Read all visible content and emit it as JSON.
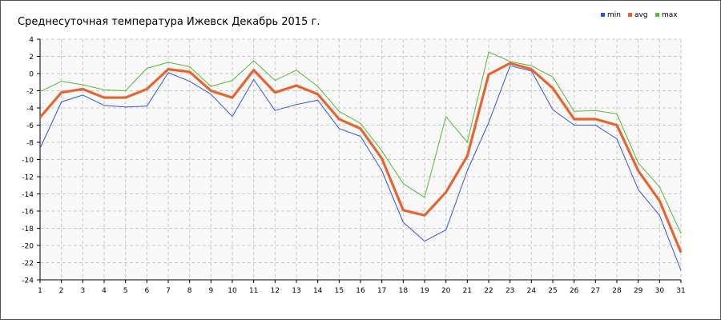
{
  "chart_data": {
    "type": "line",
    "title": "Среднесуточная температура Ижевск  Декабрь 2015 г.",
    "xlabel": "",
    "ylabel": "",
    "x": [
      1,
      2,
      3,
      4,
      5,
      6,
      7,
      8,
      9,
      10,
      11,
      12,
      13,
      14,
      15,
      16,
      17,
      18,
      19,
      20,
      21,
      22,
      23,
      24,
      25,
      26,
      27,
      28,
      29,
      30,
      31
    ],
    "ylim": [
      -24,
      4
    ],
    "yticks": [
      4,
      2,
      0,
      -2,
      -4,
      -6,
      -8,
      -10,
      -12,
      -14,
      -16,
      -18,
      -20,
      -22,
      -24
    ],
    "grid": true,
    "legend_position": "top-right",
    "series": [
      {
        "name": "min",
        "color": "#3355dd",
        "values": [
          -8.7,
          -3.3,
          -2.5,
          -3.7,
          -3.9,
          -3.8,
          0.1,
          -0.9,
          -2.4,
          -5.0,
          -0.7,
          -4.3,
          -3.6,
          -3.1,
          -6.4,
          -7.3,
          -11.3,
          -17.3,
          -19.5,
          -18.2,
          -11.3,
          -5.7,
          0.9,
          0.3,
          -4.2,
          -6.0,
          -6.0,
          -7.6,
          -13.5,
          -16.5,
          -22.9
        ]
      },
      {
        "name": "avg",
        "color": "#e8622a",
        "values": [
          -5.1,
          -2.2,
          -1.8,
          -2.8,
          -2.8,
          -1.8,
          0.5,
          0.2,
          -2.0,
          -2.8,
          0.4,
          -2.2,
          -1.4,
          -2.4,
          -5.3,
          -6.4,
          -9.9,
          -15.9,
          -16.5,
          -13.8,
          -9.6,
          -0.1,
          1.2,
          0.5,
          -1.7,
          -5.3,
          -5.3,
          -6.0,
          -11.3,
          -14.8,
          -20.8
        ]
      },
      {
        "name": "max",
        "color": "#55bb33",
        "values": [
          -2.1,
          -0.9,
          -1.3,
          -1.9,
          -2.0,
          0.6,
          1.3,
          0.8,
          -1.5,
          -0.8,
          1.5,
          -0.8,
          0.4,
          -1.5,
          -4.4,
          -5.8,
          -9.0,
          -12.8,
          -14.4,
          -5.0,
          -8.0,
          2.5,
          1.4,
          0.9,
          -0.4,
          -4.4,
          -4.3,
          -4.7,
          -10.4,
          -13.2,
          -18.6
        ]
      }
    ]
  }
}
